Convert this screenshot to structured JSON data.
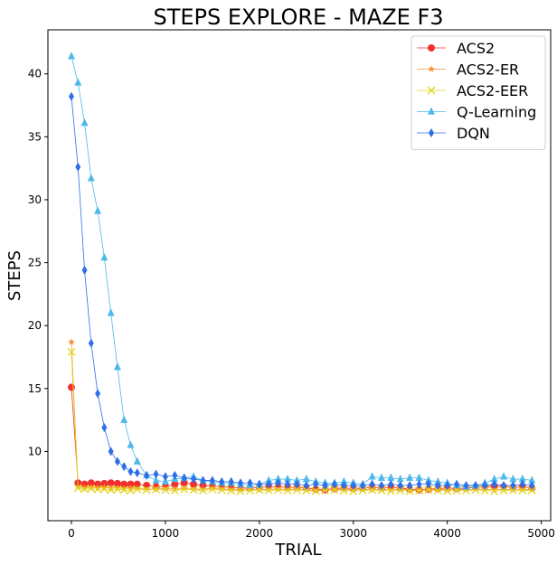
{
  "chart_data": {
    "type": "line",
    "title": "STEPS EXPLORE - MAZE F3",
    "xlabel": "TRIAL",
    "ylabel": "STEPS",
    "xlim": [
      -250,
      5100
    ],
    "ylim": [
      4.5,
      43.5
    ],
    "xticks": [
      0,
      1000,
      2000,
      3000,
      4000,
      5000
    ],
    "yticks": [
      10,
      15,
      20,
      25,
      30,
      35,
      40
    ],
    "legend_position": "top-right",
    "series": [
      {
        "name": "ACS2",
        "color": "#f0302e",
        "marker": "circle",
        "x": [
          0,
          70,
          140,
          210,
          280,
          350,
          420,
          490,
          560,
          630,
          700,
          800,
          900,
          1000,
          1100,
          1200,
          1300,
          1400,
          1500,
          1600,
          1700,
          1800,
          1900,
          2000,
          2100,
          2200,
          2300,
          2400,
          2500,
          2600,
          2700,
          2800,
          2900,
          3000,
          3100,
          3200,
          3300,
          3400,
          3500,
          3600,
          3700,
          3800,
          3900,
          4000,
          4100,
          4200,
          4300,
          4400,
          4500,
          4600,
          4700,
          4800,
          4900
        ],
        "values": [
          15.1,
          7.5,
          7.4,
          7.5,
          7.4,
          7.45,
          7.5,
          7.45,
          7.4,
          7.4,
          7.4,
          7.3,
          7.2,
          7.2,
          7.4,
          7.5,
          7.4,
          7.3,
          7.25,
          7.2,
          7.15,
          7.1,
          7.1,
          7.15,
          7.2,
          7.2,
          7.15,
          7.15,
          7.1,
          7.0,
          6.95,
          7.05,
          7.1,
          7.05,
          7.1,
          7.15,
          7.1,
          7.15,
          7.1,
          7.0,
          6.95,
          7.0,
          7.05,
          7.1,
          7.05,
          7.1,
          7.15,
          7.2,
          7.25,
          7.2,
          7.15,
          7.2,
          7.1
        ]
      },
      {
        "name": "ACS2-ER",
        "color": "#f5923a",
        "marker": "star",
        "x": [
          0,
          70,
          140,
          210,
          280,
          350,
          420,
          490,
          560,
          630,
          700,
          800,
          900,
          1000,
          1100,
          1200,
          1300,
          1400,
          1500,
          1600,
          1700,
          1800,
          1900,
          2000,
          2100,
          2200,
          2300,
          2400,
          2500,
          2600,
          2700,
          2800,
          2900,
          3000,
          3100,
          3200,
          3300,
          3400,
          3500,
          3600,
          3700,
          3800,
          3900,
          4000,
          4100,
          4200,
          4300,
          4400,
          4500,
          4600,
          4700,
          4800,
          4900
        ],
        "values": [
          18.7,
          7.2,
          7.1,
          7.15,
          7.1,
          7.15,
          7.1,
          7.1,
          7.05,
          7.1,
          7.05,
          7.0,
          7.0,
          7.05,
          7.0,
          7.05,
          7.0,
          7.0,
          7.05,
          7.0,
          6.95,
          7.0,
          7.0,
          6.95,
          7.0,
          7.0,
          6.95,
          7.0,
          6.95,
          6.9,
          6.95,
          7.0,
          6.95,
          7.0,
          7.0,
          6.95,
          7.0,
          6.95,
          7.0,
          6.95,
          6.9,
          6.95,
          7.0,
          6.95,
          7.0,
          6.95,
          7.0,
          7.0,
          6.95,
          7.0,
          6.95,
          7.0,
          6.95
        ]
      },
      {
        "name": "ACS2-EER",
        "color": "#e3d41a",
        "marker": "x",
        "x": [
          0,
          70,
          140,
          210,
          280,
          350,
          420,
          490,
          560,
          630,
          700,
          800,
          900,
          1000,
          1100,
          1200,
          1300,
          1400,
          1500,
          1600,
          1700,
          1800,
          1900,
          2000,
          2100,
          2200,
          2300,
          2400,
          2500,
          2600,
          2700,
          2800,
          2900,
          3000,
          3100,
          3200,
          3300,
          3400,
          3500,
          3600,
          3700,
          3800,
          3900,
          4000,
          4100,
          4200,
          4300,
          4400,
          4500,
          4600,
          4700,
          4800,
          4900
        ],
        "values": [
          17.9,
          7.1,
          7.0,
          7.05,
          7.0,
          7.0,
          6.95,
          7.0,
          6.95,
          6.9,
          7.0,
          6.95,
          7.0,
          6.95,
          6.9,
          7.0,
          6.95,
          6.9,
          7.0,
          6.95,
          6.9,
          6.85,
          6.9,
          6.95,
          6.9,
          6.95,
          6.9,
          6.95,
          6.9,
          6.85,
          6.9,
          6.95,
          6.9,
          6.85,
          6.9,
          6.95,
          6.9,
          6.85,
          6.9,
          6.85,
          6.9,
          6.95,
          6.9,
          6.85,
          6.9,
          6.9,
          6.95,
          6.9,
          6.85,
          6.9,
          6.95,
          6.9,
          6.9
        ]
      },
      {
        "name": "Q-Learning",
        "color": "#4db8ea",
        "marker": "triangle",
        "x": [
          0,
          70,
          140,
          210,
          280,
          350,
          420,
          490,
          560,
          630,
          700,
          800,
          900,
          1000,
          1100,
          1200,
          1300,
          1400,
          1500,
          1600,
          1700,
          1800,
          1900,
          2000,
          2100,
          2200,
          2300,
          2400,
          2500,
          2600,
          2700,
          2800,
          2900,
          3000,
          3100,
          3200,
          3300,
          3400,
          3500,
          3600,
          3700,
          3800,
          3900,
          4000,
          4100,
          4200,
          4300,
          4400,
          4500,
          4600,
          4700,
          4800,
          4900
        ],
        "values": [
          41.4,
          39.3,
          36.1,
          31.7,
          29.1,
          25.4,
          21.0,
          16.7,
          12.5,
          10.5,
          9.2,
          8.1,
          7.7,
          7.6,
          7.8,
          7.9,
          8.0,
          7.7,
          7.6,
          7.5,
          7.5,
          7.4,
          7.3,
          7.4,
          7.7,
          7.8,
          7.8,
          7.7,
          7.8,
          7.6,
          7.5,
          7.5,
          7.6,
          7.5,
          7.4,
          8.0,
          7.9,
          7.9,
          7.8,
          7.9,
          7.9,
          7.7,
          7.6,
          7.5,
          7.3,
          7.2,
          7.3,
          7.5,
          7.8,
          8.0,
          7.8,
          7.8,
          7.7
        ]
      },
      {
        "name": "DQN",
        "color": "#2e6ee6",
        "marker": "diamond",
        "x": [
          0,
          70,
          140,
          210,
          280,
          350,
          420,
          490,
          560,
          630,
          700,
          800,
          900,
          1000,
          1100,
          1200,
          1300,
          1400,
          1500,
          1600,
          1700,
          1800,
          1900,
          2000,
          2100,
          2200,
          2300,
          2400,
          2500,
          2600,
          2700,
          2800,
          2900,
          3000,
          3100,
          3200,
          3300,
          3400,
          3500,
          3600,
          3700,
          3800,
          3900,
          4000,
          4100,
          4200,
          4300,
          4400,
          4500,
          4600,
          4700,
          4800,
          4900
        ],
        "values": [
          38.2,
          32.6,
          24.4,
          18.6,
          14.6,
          11.9,
          10.0,
          9.2,
          8.8,
          8.4,
          8.3,
          8.1,
          8.2,
          8.0,
          8.1,
          7.9,
          7.8,
          7.7,
          7.7,
          7.6,
          7.6,
          7.5,
          7.5,
          7.4,
          7.4,
          7.5,
          7.4,
          7.4,
          7.3,
          7.4,
          7.3,
          7.4,
          7.3,
          7.3,
          7.3,
          7.4,
          7.3,
          7.4,
          7.3,
          7.3,
          7.4,
          7.4,
          7.3,
          7.3,
          7.4,
          7.3,
          7.3,
          7.3,
          7.4,
          7.3,
          7.3,
          7.4,
          7.3
        ]
      }
    ]
  }
}
